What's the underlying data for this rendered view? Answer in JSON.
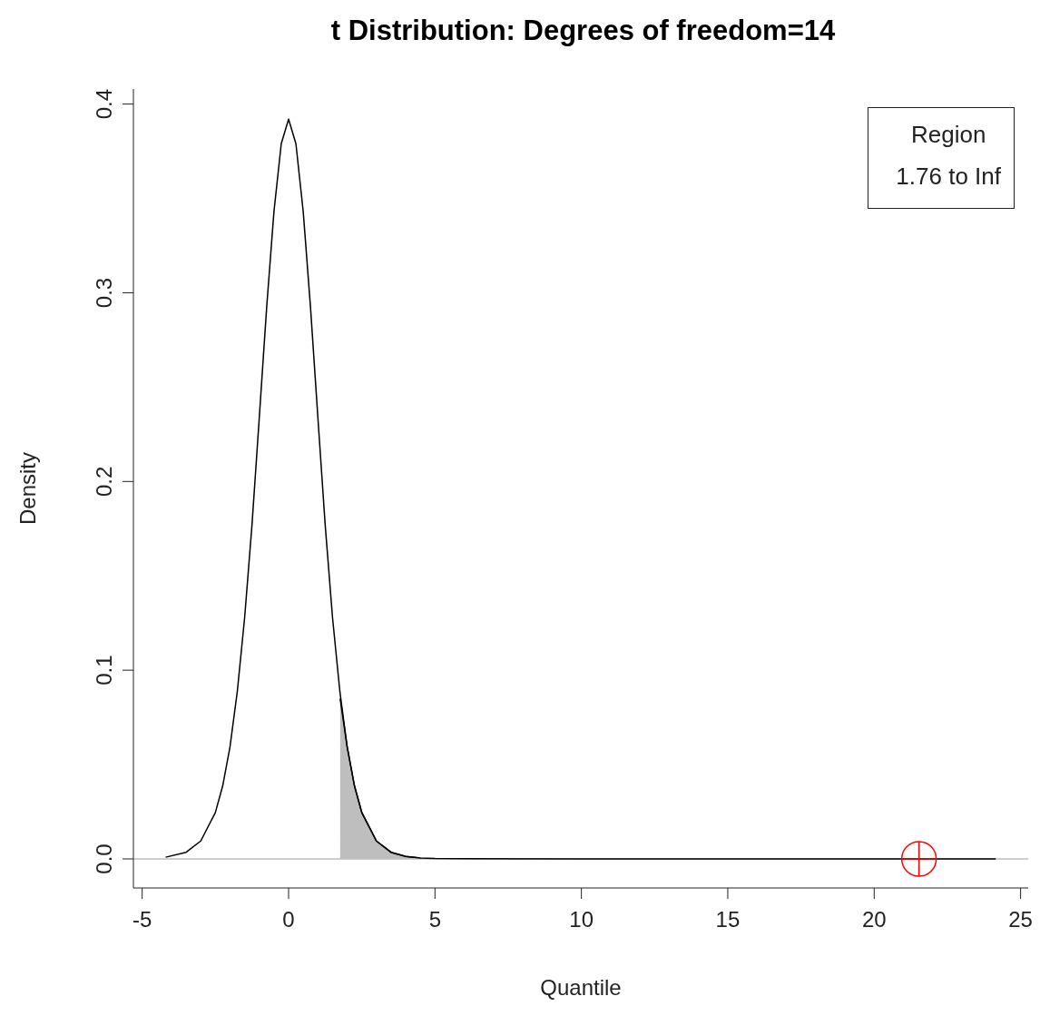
{
  "chart_data": {
    "type": "line",
    "title": "t Distribution:  Degrees of freedom=14",
    "xlabel": "Quantile",
    "ylabel": "Density",
    "xlim": [
      -5.3,
      25.26
    ],
    "ylim": [
      -0.0154,
      0.408
    ],
    "xticks": [
      -5,
      0,
      5,
      10,
      15,
      20,
      25
    ],
    "yticks": [
      {
        "value": 0,
        "label": "0.0"
      },
      {
        "value": 0.1,
        "label": "0.1"
      },
      {
        "value": 0.2,
        "label": "0.2"
      },
      {
        "value": 0.3,
        "label": "0.3"
      },
      {
        "value": 0.4,
        "label": "0.4"
      }
    ],
    "grid": false,
    "marker": "none",
    "line_style": "solid",
    "annotations": [
      "Region",
      "1.76 to Inf"
    ],
    "ref_lines": [
      {
        "axis": "y",
        "value": 0,
        "color": "#bebebe"
      }
    ],
    "series": [
      {
        "type": "area",
        "color": "#bebebe",
        "x": [
          1.76,
          2,
          2.25,
          2.5,
          3,
          3.5,
          4,
          4.5
        ],
        "values": [
          0.085,
          0.0595,
          0.0387,
          0.0246,
          0.0095,
          0.0035,
          0.0013,
          0.0005
        ]
      },
      {
        "color": "#000000",
        "x": [
          -4.2,
          -3.5,
          -3,
          -2.5,
          -2.25,
          -2,
          -1.75,
          -1.5,
          -1.25,
          -1,
          -0.75,
          -0.5,
          -0.25,
          0,
          0.25,
          0.5,
          0.75,
          1,
          1.25,
          1.5,
          1.75,
          2,
          2.25,
          2.5,
          3,
          3.5,
          4,
          4.5,
          5,
          10,
          24.15
        ],
        "values": [
          0.0009,
          0.0035,
          0.0095,
          0.0246,
          0.0387,
          0.0595,
          0.0889,
          0.128,
          0.177,
          0.234,
          0.292,
          0.343,
          0.379,
          0.392,
          0.379,
          0.343,
          0.292,
          0.234,
          0.177,
          0.128,
          0.0889,
          0.0595,
          0.0387,
          0.0246,
          0.0095,
          0.0035,
          0.0013,
          0.0005,
          0.0002,
          0,
          0
        ]
      },
      {
        "type": "scatter",
        "color": "#ff0000",
        "marker": "circle",
        "x": [
          21.53
        ],
        "values": [
          0
        ]
      }
    ]
  }
}
